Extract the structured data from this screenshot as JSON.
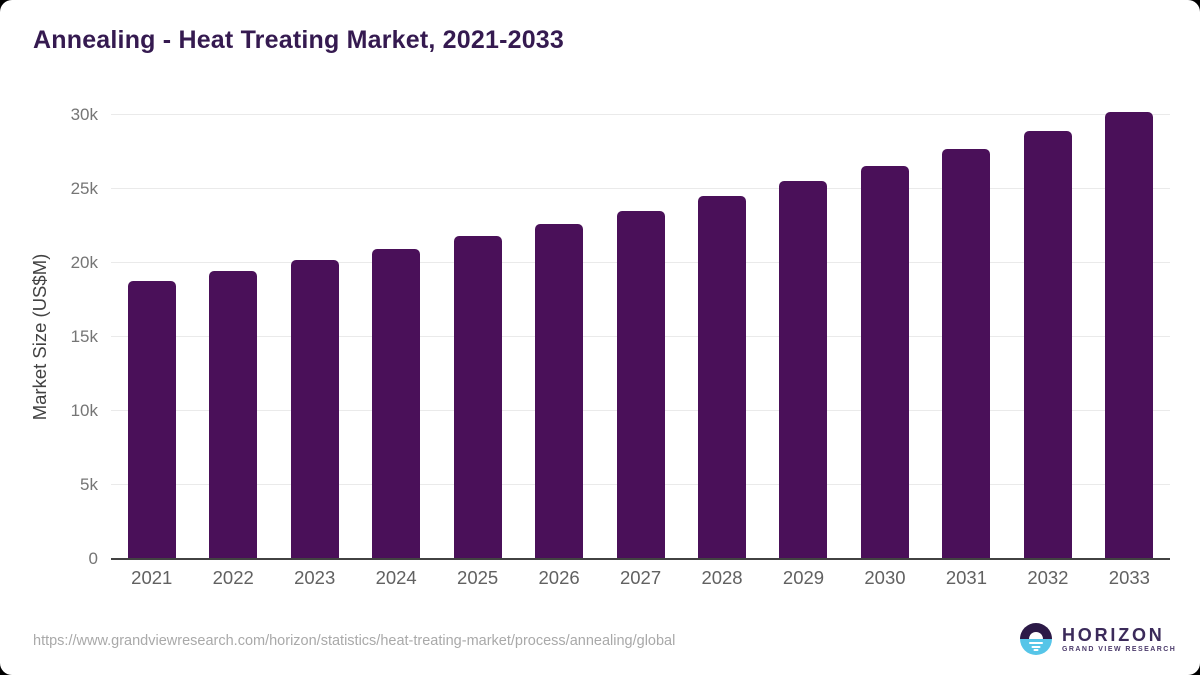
{
  "title": "Annealing - Heat Treating Market, 2021-2033",
  "chart_data": {
    "type": "bar",
    "title": "Annealing - Heat Treating Market, 2021-2033",
    "categories": [
      "2021",
      "2022",
      "2023",
      "2024",
      "2025",
      "2026",
      "2027",
      "2028",
      "2029",
      "2030",
      "2031",
      "2032",
      "2033"
    ],
    "values": [
      18800,
      19450,
      20200,
      20950,
      21800,
      22650,
      23500,
      24550,
      25550,
      26550,
      27700,
      28900,
      30200
    ],
    "xlabel": "",
    "ylabel": "Market Size (US$M)",
    "ylim": [
      0,
      30000
    ],
    "yticks": [
      0,
      5000,
      10000,
      15000,
      20000,
      25000,
      30000
    ],
    "ytick_labels": [
      "0",
      "5k",
      "10k",
      "15k",
      "20k",
      "25k",
      "30k"
    ],
    "grid": "horizontal",
    "legend": "none",
    "bar_color": "#4a1059"
  },
  "footer": {
    "source_url": "https://www.grandviewresearch.com/horizon/statistics/heat-treating-market/process/annealing/global",
    "logo": {
      "name": "HORIZON",
      "subtitle": "GRAND VIEW RESEARCH"
    }
  },
  "colors": {
    "title_text": "#351a50",
    "bar": "#4a1059",
    "axis_line": "#424242",
    "gridline": "#eaeaea",
    "y_tick_text": "#757575",
    "x_tick_text": "#616161",
    "url_text": "#a9a9a9",
    "logo_purple": "#3b2a5a",
    "logo_icon_dark": "#2c1a47",
    "logo_icon_blue": "#56c5e8"
  }
}
